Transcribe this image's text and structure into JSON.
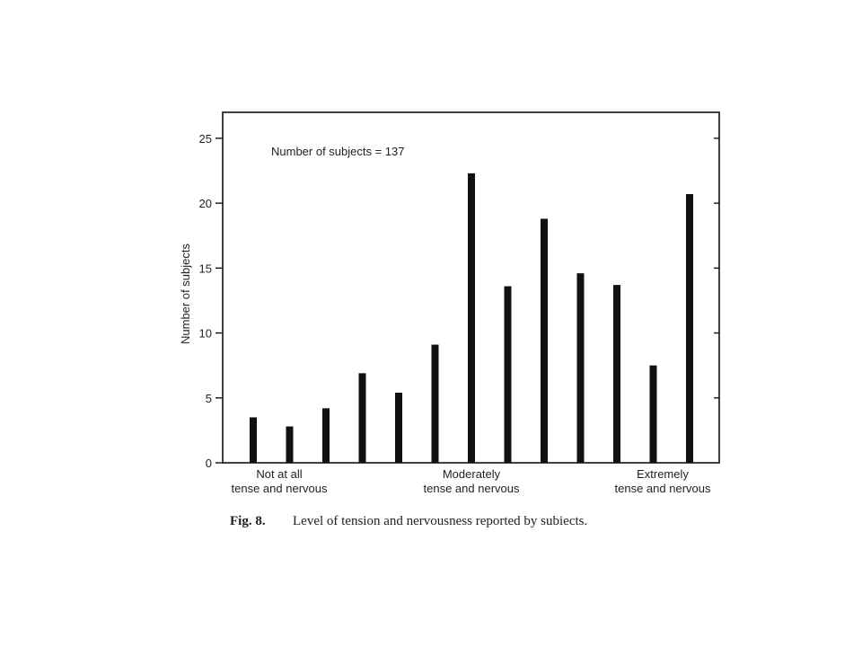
{
  "figure": {
    "caption_label": "Fig. 8.",
    "caption_text": "Level of tension and nervousness reported by subiects."
  },
  "chart_data": {
    "type": "bar",
    "title": "",
    "annotation": "Number of subjects = 137",
    "xlabel": "",
    "ylabel": "Number of subjects",
    "ylim": [
      0,
      27
    ],
    "yticks": [
      0,
      5,
      10,
      15,
      20,
      25
    ],
    "grid": false,
    "category_labels": [
      {
        "lines": [
          "Not at all",
          "tense and nervous"
        ],
        "position": "left"
      },
      {
        "lines": [
          "Moderately",
          "tense and nervous"
        ],
        "position": "center"
      },
      {
        "lines": [
          "Extremely",
          "tense and nervous"
        ],
        "position": "right"
      }
    ],
    "values": [
      3.5,
      2.8,
      4.2,
      6.9,
      5.4,
      9.1,
      22.3,
      13.6,
      18.8,
      14.6,
      13.7,
      7.5,
      20.7
    ],
    "bar_color": "#111111"
  }
}
